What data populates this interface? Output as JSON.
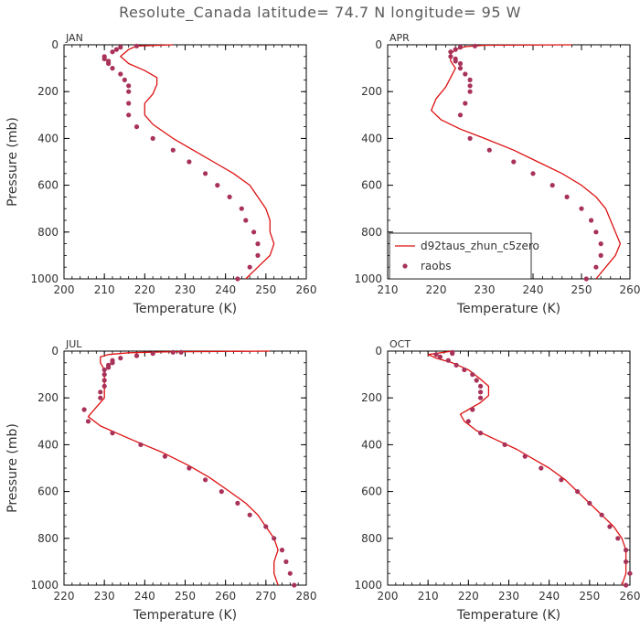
{
  "title": "Resolute_Canada   latitude= 74.7 N longitude= 95 W",
  "colors": {
    "model": "#dd1111",
    "obs": "#a83258",
    "axis": "#000000",
    "text": "#333333"
  },
  "legend": {
    "model_label": "d92taus_zhun_c5zero",
    "obs_label": "raobs",
    "placement": "bottom-right of APR panel"
  },
  "chart_data": [
    {
      "type": "line",
      "panel": "JAN",
      "xlabel": "Temperature (K)",
      "ylabel": "Pressure (mb)",
      "xlim": [
        200,
        260
      ],
      "ylim": [
        1000,
        0
      ],
      "xticks": [
        200,
        210,
        220,
        230,
        240,
        250,
        260
      ],
      "yticks": [
        0,
        200,
        400,
        600,
        800,
        1000
      ],
      "series": [
        {
          "name": "d92taus_zhun_c5zero",
          "kind": "line",
          "points": [
            [
              227,
              0
            ],
            [
              218,
              5
            ],
            [
              216,
              20
            ],
            [
              214,
              50
            ],
            [
              216,
              80
            ],
            [
              220,
              110
            ],
            [
              223,
              140
            ],
            [
              223,
              170
            ],
            [
              222,
              210
            ],
            [
              220,
              250
            ],
            [
              220,
              300
            ],
            [
              222,
              340
            ],
            [
              227,
              400
            ],
            [
              232,
              450
            ],
            [
              237,
              500
            ],
            [
              242,
              550
            ],
            [
              246,
              600
            ],
            [
              248,
              650
            ],
            [
              250,
              700
            ],
            [
              251,
              750
            ],
            [
              251,
              800
            ],
            [
              252,
              850
            ],
            [
              251,
              900
            ],
            [
              248,
              950
            ],
            [
              245,
              1000
            ]
          ]
        },
        {
          "name": "raobs",
          "kind": "scatter",
          "points": [
            [
              218,
              5
            ],
            [
              214,
              10
            ],
            [
              213,
              20
            ],
            [
              212,
              30
            ],
            [
              210,
              50
            ],
            [
              210,
              60
            ],
            [
              211,
              70
            ],
            [
              211,
              80
            ],
            [
              212,
              100
            ],
            [
              214,
              125
            ],
            [
              215,
              150
            ],
            [
              216,
              175
            ],
            [
              216,
              200
            ],
            [
              216,
              250
            ],
            [
              216,
              300
            ],
            [
              218,
              350
            ],
            [
              222,
              400
            ],
            [
              227,
              450
            ],
            [
              231,
              500
            ],
            [
              235,
              550
            ],
            [
              238,
              600
            ],
            [
              241,
              650
            ],
            [
              244,
              700
            ],
            [
              245,
              750
            ],
            [
              247,
              800
            ],
            [
              248,
              850
            ],
            [
              248,
              900
            ],
            [
              246,
              950
            ],
            [
              243,
              1000
            ]
          ]
        }
      ]
    },
    {
      "type": "line",
      "panel": "APR",
      "xlabel": "Temperature (K)",
      "ylabel": "",
      "xlim": [
        210,
        260
      ],
      "ylim": [
        1000,
        0
      ],
      "xticks": [
        210,
        220,
        230,
        240,
        250,
        260
      ],
      "yticks": [
        0,
        200,
        400,
        600,
        800,
        1000
      ],
      "series": [
        {
          "name": "d92taus_zhun_c5zero",
          "kind": "line",
          "points": [
            [
              248,
              0
            ],
            [
              230,
              2
            ],
            [
              226,
              8
            ],
            [
              224,
              20
            ],
            [
              223,
              40
            ],
            [
              223,
              70
            ],
            [
              224,
              100
            ],
            [
              223,
              140
            ],
            [
              222,
              180
            ],
            [
              220,
              230
            ],
            [
              219,
              280
            ],
            [
              221,
              320
            ],
            [
              225,
              360
            ],
            [
              230,
              400
            ],
            [
              236,
              450
            ],
            [
              241,
              500
            ],
            [
              246,
              550
            ],
            [
              250,
              600
            ],
            [
              253,
              650
            ],
            [
              255,
              700
            ],
            [
              256,
              750
            ],
            [
              257,
              800
            ],
            [
              258,
              850
            ],
            [
              257,
              900
            ],
            [
              255,
              950
            ],
            [
              253,
              1000
            ]
          ]
        },
        {
          "name": "raobs",
          "kind": "scatter",
          "points": [
            [
              228,
              5
            ],
            [
              225,
              10
            ],
            [
              224,
              20
            ],
            [
              223,
              30
            ],
            [
              223,
              50
            ],
            [
              224,
              60
            ],
            [
              224,
              70
            ],
            [
              225,
              80
            ],
            [
              225,
              100
            ],
            [
              226,
              125
            ],
            [
              227,
              150
            ],
            [
              227,
              175
            ],
            [
              227,
              200
            ],
            [
              226,
              250
            ],
            [
              225,
              300
            ],
            [
              227,
              400
            ],
            [
              231,
              450
            ],
            [
              236,
              500
            ],
            [
              240,
              550
            ],
            [
              244,
              600
            ],
            [
              247,
              650
            ],
            [
              250,
              700
            ],
            [
              252,
              750
            ],
            [
              253,
              800
            ],
            [
              254,
              850
            ],
            [
              254,
              900
            ],
            [
              253,
              950
            ],
            [
              251,
              1000
            ]
          ]
        }
      ]
    },
    {
      "type": "line",
      "panel": "JUL",
      "xlabel": "Temperature (K)",
      "ylabel": "Pressure (mb)",
      "xlim": [
        220,
        280
      ],
      "ylim": [
        1000,
        0
      ],
      "xticks": [
        220,
        230,
        240,
        250,
        260,
        270,
        280
      ],
      "yticks": [
        0,
        200,
        400,
        600,
        800,
        1000
      ],
      "series": [
        {
          "name": "d92taus_zhun_c5zero",
          "kind": "line",
          "points": [
            [
              271,
              0
            ],
            [
              245,
              3
            ],
            [
              236,
              7
            ],
            [
              231,
              15
            ],
            [
              229,
              25
            ],
            [
              229,
              50
            ],
            [
              230,
              80
            ],
            [
              230,
              120
            ],
            [
              230,
              160
            ],
            [
              230,
              200
            ],
            [
              228,
              240
            ],
            [
              226,
              280
            ],
            [
              229,
              320
            ],
            [
              237,
              380
            ],
            [
              244,
              430
            ],
            [
              251,
              490
            ],
            [
              256,
              540
            ],
            [
              261,
              600
            ],
            [
              265,
              650
            ],
            [
              268,
              700
            ],
            [
              270,
              750
            ],
            [
              272,
              800
            ],
            [
              273,
              850
            ],
            [
              272,
              900
            ],
            [
              272,
              950
            ],
            [
              273,
              1000
            ]
          ]
        },
        {
          "name": "raobs",
          "kind": "scatter",
          "points": [
            [
              249,
              5
            ],
            [
              247,
              5
            ],
            [
              242,
              10
            ],
            [
              238,
              20
            ],
            [
              234,
              30
            ],
            [
              232,
              40
            ],
            [
              232,
              50
            ],
            [
              231,
              60
            ],
            [
              231,
              70
            ],
            [
              230,
              80
            ],
            [
              230,
              100
            ],
            [
              230,
              125
            ],
            [
              230,
              150
            ],
            [
              229,
              175
            ],
            [
              229,
              200
            ],
            [
              225,
              250
            ],
            [
              226,
              300
            ],
            [
              232,
              350
            ],
            [
              239,
              400
            ],
            [
              245,
              450
            ],
            [
              251,
              500
            ],
            [
              255,
              550
            ],
            [
              259,
              600
            ],
            [
              263,
              650
            ],
            [
              266,
              700
            ],
            [
              270,
              750
            ],
            [
              272,
              800
            ],
            [
              274,
              850
            ],
            [
              275,
              900
            ],
            [
              276,
              950
            ],
            [
              277,
              1000
            ]
          ]
        }
      ]
    },
    {
      "type": "line",
      "panel": "OCT",
      "xlabel": "Temperature (K)",
      "ylabel": "",
      "xlim": [
        200,
        260
      ],
      "ylim": [
        1000,
        0
      ],
      "xticks": [
        200,
        210,
        220,
        230,
        240,
        250,
        260
      ],
      "yticks": [
        0,
        200,
        400,
        600,
        800,
        1000
      ],
      "series": [
        {
          "name": "d92taus_zhun_c5zero",
          "kind": "line",
          "points": [
            [
              216,
              0
            ],
            [
              210,
              15
            ],
            [
              212,
              30
            ],
            [
              216,
              50
            ],
            [
              220,
              80
            ],
            [
              223,
              120
            ],
            [
              225,
              150
            ],
            [
              225,
              190
            ],
            [
              223,
              220
            ],
            [
              220,
              250
            ],
            [
              218,
              270
            ],
            [
              219,
              300
            ],
            [
              222,
              340
            ],
            [
              227,
              380
            ],
            [
              232,
              420
            ],
            [
              236,
              460
            ],
            [
              240,
              500
            ],
            [
              244,
              550
            ],
            [
              247,
              600
            ],
            [
              250,
              650
            ],
            [
              253,
              700
            ],
            [
              256,
              750
            ],
            [
              258,
              800
            ],
            [
              259,
              850
            ],
            [
              259,
              900
            ],
            [
              259,
              950
            ],
            [
              258,
              1000
            ]
          ]
        },
        {
          "name": "raobs",
          "kind": "scatter",
          "points": [
            [
              216,
              5
            ],
            [
              216,
              10
            ],
            [
              212,
              15
            ],
            [
              213,
              25
            ],
            [
              215,
              40
            ],
            [
              217,
              60
            ],
            [
              219,
              80
            ],
            [
              221,
              100
            ],
            [
              222,
              125
            ],
            [
              223,
              150
            ],
            [
              223,
              175
            ],
            [
              223,
              200
            ],
            [
              221,
              250
            ],
            [
              220,
              300
            ],
            [
              223,
              350
            ],
            [
              229,
              400
            ],
            [
              234,
              450
            ],
            [
              238,
              500
            ],
            [
              243,
              550
            ],
            [
              247,
              600
            ],
            [
              250,
              650
            ],
            [
              253,
              700
            ],
            [
              255,
              750
            ],
            [
              257,
              800
            ],
            [
              259,
              850
            ],
            [
              259,
              900
            ],
            [
              260,
              950
            ],
            [
              259,
              1000
            ]
          ]
        }
      ]
    }
  ]
}
